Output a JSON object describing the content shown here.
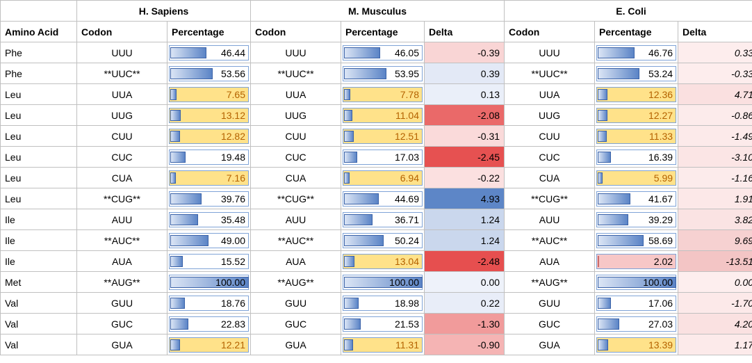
{
  "table": {
    "species": [
      "H. Sapiens",
      "M. Musculus",
      "E. Coli"
    ],
    "headers": {
      "amino_acid": "Amino Acid",
      "codon": "Codon",
      "percentage": "Percentage",
      "delta": "Delta"
    },
    "rows": [
      {
        "aa": "Phe",
        "hs": {
          "codon": "UUU",
          "pct": 46.44,
          "hl": false
        },
        "mm": {
          "codon": "UUU",
          "pct": 46.05,
          "hl": false,
          "delta": -0.39
        },
        "ec": {
          "codon": "UUU",
          "pct": 46.76,
          "hl": false,
          "delta": 0.33
        }
      },
      {
        "aa": "Phe",
        "hs": {
          "codon": "**UUC**",
          "pct": 53.56,
          "hl": false
        },
        "mm": {
          "codon": "**UUC**",
          "pct": 53.95,
          "hl": false,
          "delta": 0.39
        },
        "ec": {
          "codon": "**UUC**",
          "pct": 53.24,
          "hl": false,
          "delta": -0.33
        }
      },
      {
        "aa": "Leu",
        "hs": {
          "codon": "UUA",
          "pct": 7.65,
          "hl": true
        },
        "mm": {
          "codon": "UUA",
          "pct": 7.78,
          "hl": true,
          "delta": 0.13
        },
        "ec": {
          "codon": "UUA",
          "pct": 12.36,
          "hl": true,
          "delta": 4.71
        }
      },
      {
        "aa": "Leu",
        "hs": {
          "codon": "UUG",
          "pct": 13.12,
          "hl": true
        },
        "mm": {
          "codon": "UUG",
          "pct": 11.04,
          "hl": true,
          "delta": -2.08
        },
        "ec": {
          "codon": "UUG",
          "pct": 12.27,
          "hl": true,
          "delta": -0.86
        }
      },
      {
        "aa": "Leu",
        "hs": {
          "codon": "CUU",
          "pct": 12.82,
          "hl": true
        },
        "mm": {
          "codon": "CUU",
          "pct": 12.51,
          "hl": true,
          "delta": -0.31
        },
        "ec": {
          "codon": "CUU",
          "pct": 11.33,
          "hl": true,
          "delta": -1.49
        }
      },
      {
        "aa": "Leu",
        "hs": {
          "codon": "CUC",
          "pct": 19.48,
          "hl": false
        },
        "mm": {
          "codon": "CUC",
          "pct": 17.03,
          "hl": false,
          "delta": -2.45
        },
        "ec": {
          "codon": "CUC",
          "pct": 16.39,
          "hl": false,
          "delta": -3.1
        }
      },
      {
        "aa": "Leu",
        "hs": {
          "codon": "CUA",
          "pct": 7.16,
          "hl": true
        },
        "mm": {
          "codon": "CUA",
          "pct": 6.94,
          "hl": true,
          "delta": -0.22
        },
        "ec": {
          "codon": "CUA",
          "pct": 5.99,
          "hl": true,
          "delta": -1.16
        }
      },
      {
        "aa": "Leu",
        "hs": {
          "codon": "**CUG**",
          "pct": 39.76,
          "hl": false
        },
        "mm": {
          "codon": "**CUG**",
          "pct": 44.69,
          "hl": false,
          "delta": 4.93
        },
        "ec": {
          "codon": "**CUG**",
          "pct": 41.67,
          "hl": false,
          "delta": 1.91
        }
      },
      {
        "aa": "Ile",
        "hs": {
          "codon": "AUU",
          "pct": 35.48,
          "hl": false
        },
        "mm": {
          "codon": "AUU",
          "pct": 36.71,
          "hl": false,
          "delta": 1.24
        },
        "ec": {
          "codon": "AUU",
          "pct": 39.29,
          "hl": false,
          "delta": 3.82
        }
      },
      {
        "aa": "Ile",
        "hs": {
          "codon": "**AUC**",
          "pct": 49.0,
          "hl": false
        },
        "mm": {
          "codon": "**AUC**",
          "pct": 50.24,
          "hl": false,
          "delta": 1.24
        },
        "ec": {
          "codon": "**AUC**",
          "pct": 58.69,
          "hl": false,
          "delta": 9.69
        }
      },
      {
        "aa": "Ile",
        "hs": {
          "codon": "AUA",
          "pct": 15.52,
          "hl": false
        },
        "mm": {
          "codon": "AUA",
          "pct": 13.04,
          "hl": true,
          "delta": -2.48
        },
        "ec": {
          "codon": "AUA",
          "pct": 2.02,
          "hl": false,
          "pink": true,
          "delta": -13.51
        }
      },
      {
        "aa": "Met",
        "hs": {
          "codon": "**AUG**",
          "pct": 100.0,
          "hl": false
        },
        "mm": {
          "codon": "**AUG**",
          "pct": 100.0,
          "hl": false,
          "delta": 0.0
        },
        "ec": {
          "codon": "**AUG**",
          "pct": 100.0,
          "hl": false,
          "delta": 0.0
        }
      },
      {
        "aa": "Val",
        "hs": {
          "codon": "GUU",
          "pct": 18.76,
          "hl": false
        },
        "mm": {
          "codon": "GUU",
          "pct": 18.98,
          "hl": false,
          "delta": 0.22
        },
        "ec": {
          "codon": "GUU",
          "pct": 17.06,
          "hl": false,
          "delta": -1.7
        }
      },
      {
        "aa": "Val",
        "hs": {
          "codon": "GUC",
          "pct": 22.83,
          "hl": false
        },
        "mm": {
          "codon": "GUC",
          "pct": 21.53,
          "hl": false,
          "delta": -1.3
        },
        "ec": {
          "codon": "GUC",
          "pct": 27.03,
          "hl": false,
          "delta": 4.2
        }
      },
      {
        "aa": "Val",
        "hs": {
          "codon": "GUA",
          "pct": 12.21,
          "hl": true
        },
        "mm": {
          "codon": "GUA",
          "pct": 11.31,
          "hl": true,
          "delta": -0.9
        },
        "ec": {
          "codon": "GUA",
          "pct": 13.39,
          "hl": true,
          "delta": 1.17
        }
      }
    ]
  },
  "style": {
    "bar_gradient_from": "#dbe5f5",
    "bar_gradient_to": "#5b84c6",
    "bar_border": "#3a62a8",
    "hl_bg": "#ffe28a",
    "hl_text": "#b46200",
    "pink_bg": "#f7c7c7",
    "cell_border": "#7fa3d7",
    "cell_border_plain": "#c0c0c0",
    "delta_blue_range": 5.0,
    "delta_red_range": 2.5,
    "delta_blue_strong": "#5b84c6",
    "delta_blue_weak": "#eef2fa",
    "delta_red_strong": "#e64e4e",
    "delta_red_weak": "#fdeeee",
    "ecoli_delta_red_weak": "#fdeeee",
    "ecoli_delta_red_strong": "#f3c4c4",
    "ecoli_delta_red_range": 14.0
  }
}
